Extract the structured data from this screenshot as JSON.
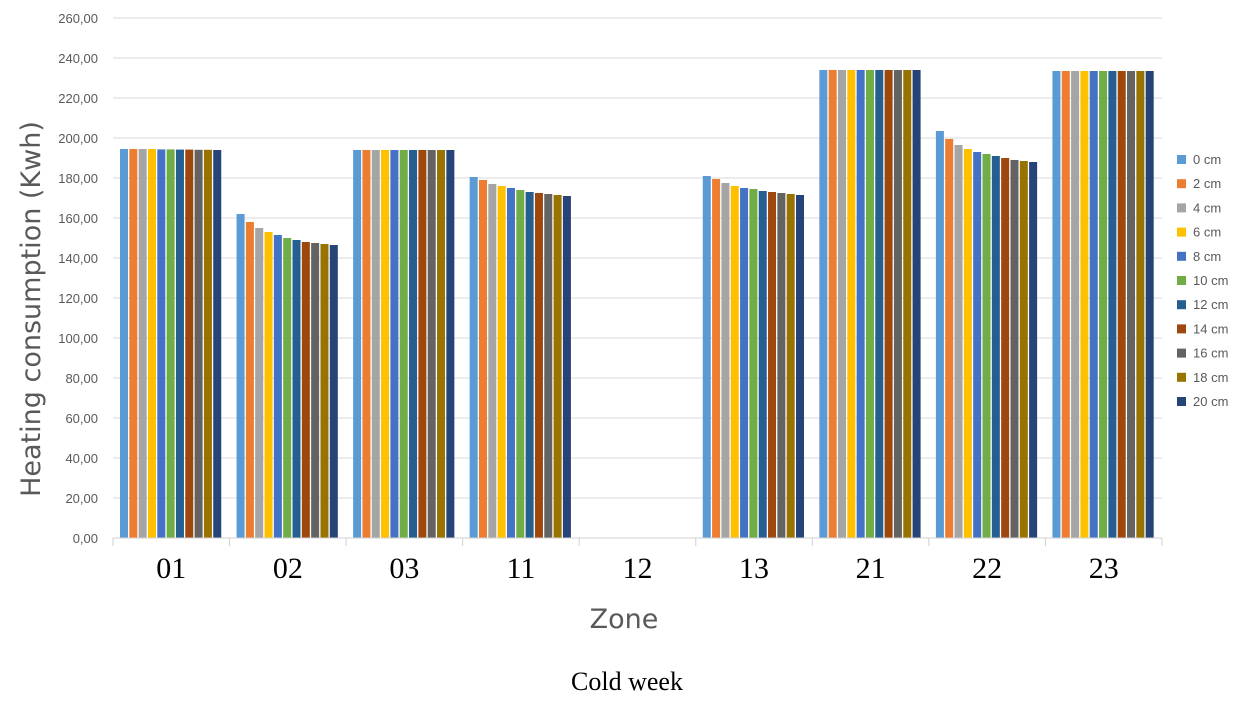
{
  "chart_data": {
    "type": "bar",
    "title": "",
    "xlabel": "Zone",
    "ylabel": "Heating consumption (Kwh)",
    "caption": "Cold week",
    "ylim": [
      0,
      260
    ],
    "ytick_step": 20,
    "ytick_labels": [
      "0,00",
      "20,00",
      "40,00",
      "60,00",
      "80,00",
      "100,00",
      "120,00",
      "140,00",
      "160,00",
      "180,00",
      "200,00",
      "220,00",
      "240,00",
      "260,00"
    ],
    "categories": [
      "01",
      "02",
      "03",
      "11",
      "12",
      "13",
      "21",
      "22",
      "23"
    ],
    "grid": true,
    "legend_position": "right",
    "series": [
      {
        "name": "0 cm",
        "color": "#5B9BD5",
        "values": [
          194.5,
          162.0,
          194.0,
          180.5,
          0,
          181.0,
          234.0,
          203.5,
          233.5
        ]
      },
      {
        "name": "2 cm",
        "color": "#ED7D31",
        "values": [
          194.5,
          158.0,
          194.0,
          179.0,
          0,
          179.5,
          234.0,
          199.5,
          233.5
        ]
      },
      {
        "name": "4 cm",
        "color": "#A5A5A5",
        "values": [
          194.5,
          155.0,
          194.0,
          177.0,
          0,
          177.5,
          234.0,
          196.5,
          233.5
        ]
      },
      {
        "name": "6 cm",
        "color": "#FFC000",
        "values": [
          194.5,
          153.0,
          194.0,
          176.0,
          0,
          176.0,
          234.0,
          194.5,
          233.5
        ]
      },
      {
        "name": "8  cm",
        "color": "#4472C4",
        "values": [
          194.3,
          151.5,
          194.0,
          175.0,
          0,
          175.0,
          234.0,
          193.0,
          233.5
        ]
      },
      {
        "name": "10 cm",
        "color": "#70AD47",
        "values": [
          194.3,
          150.0,
          194.0,
          174.0,
          0,
          174.5,
          234.0,
          192.0,
          233.5
        ]
      },
      {
        "name": "12 cm",
        "color": "#255E91",
        "values": [
          194.2,
          149.0,
          194.0,
          173.0,
          0,
          173.5,
          234.0,
          191.0,
          233.5
        ]
      },
      {
        "name": "14 cm",
        "color": "#9E480E",
        "values": [
          194.2,
          148.0,
          194.0,
          172.5,
          0,
          173.0,
          234.0,
          190.0,
          233.5
        ]
      },
      {
        "name": "16 cm",
        "color": "#636363",
        "values": [
          194.1,
          147.5,
          194.0,
          172.0,
          0,
          172.5,
          234.0,
          189.0,
          233.5
        ]
      },
      {
        "name": "18 cm",
        "color": "#997300",
        "values": [
          194.1,
          147.0,
          194.0,
          171.5,
          0,
          172.0,
          234.0,
          188.5,
          233.5
        ]
      },
      {
        "name": "20 cm",
        "color": "#264478",
        "values": [
          194.0,
          146.5,
          194.0,
          171.0,
          0,
          171.5,
          234.0,
          188.0,
          233.5
        ]
      }
    ]
  }
}
